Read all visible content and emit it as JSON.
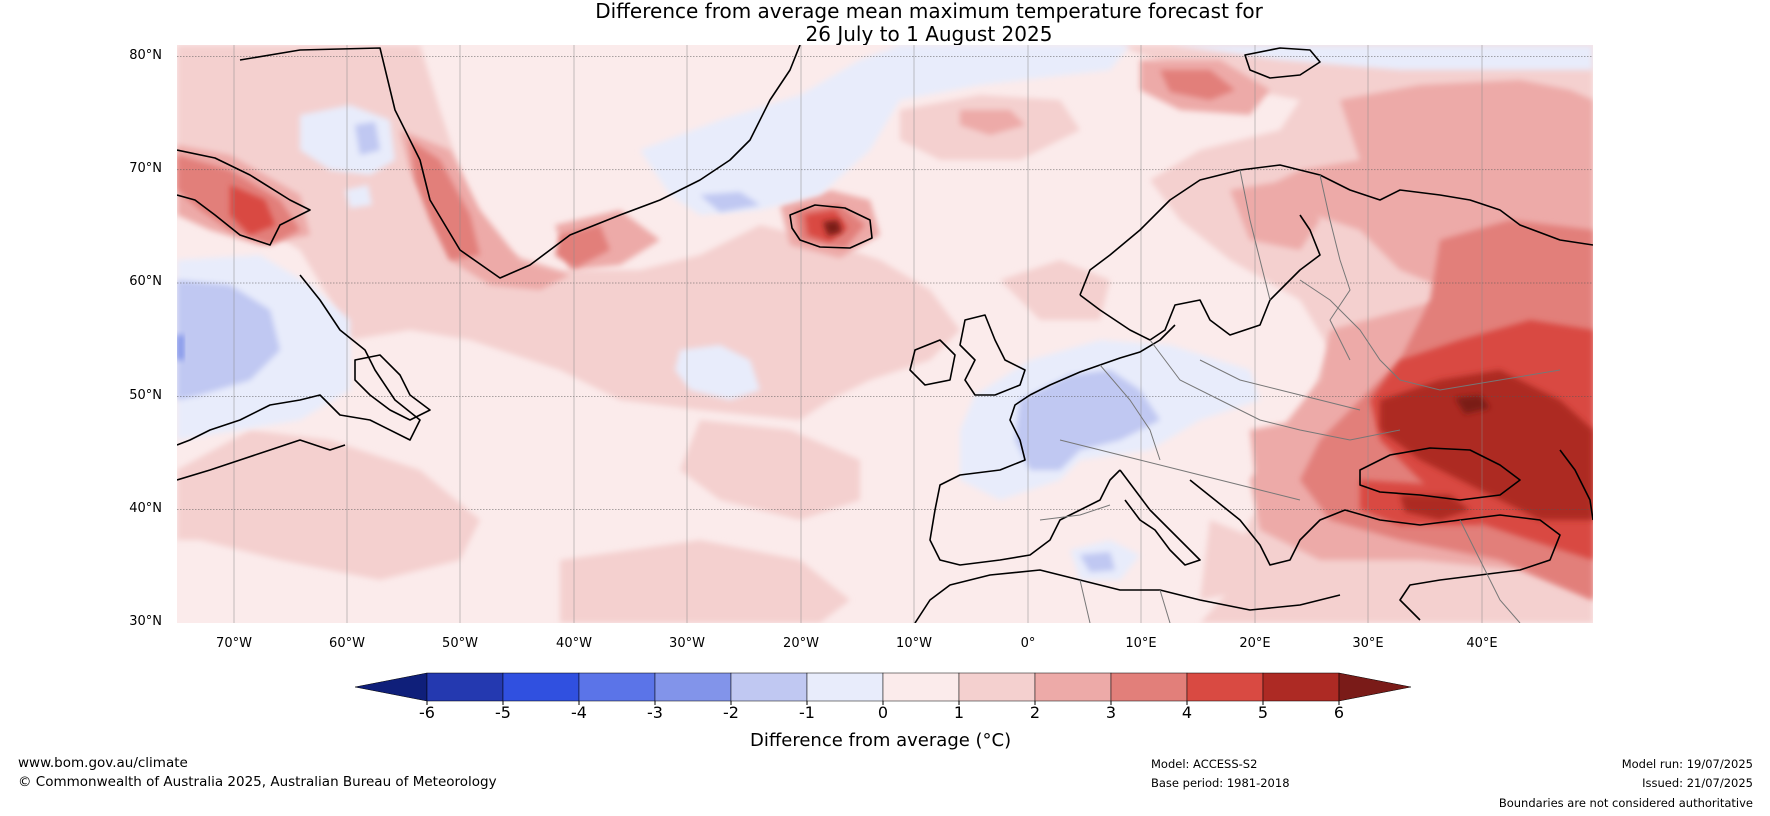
{
  "title": {
    "line1": "Difference from average mean maximum temperature forecast for",
    "line2": "26 July to 1 August 2025"
  },
  "map": {
    "latitude_labels": [
      "80°N",
      "70°N",
      "60°N",
      "50°N",
      "40°N",
      "30°N"
    ],
    "longitude_labels": [
      "70°W",
      "60°W",
      "50°W",
      "40°W",
      "30°W",
      "20°W",
      "10°W",
      "0°",
      "10°E",
      "20°E",
      "30°E",
      "40°E"
    ]
  },
  "colorbar": {
    "ticks": [
      "-6",
      "-5",
      "-4",
      "-3",
      "-2",
      "-1",
      "0",
      "1",
      "2",
      "3",
      "4",
      "5",
      "6"
    ],
    "colors": [
      "#0f1f7a",
      "#2439b0",
      "#3050e0",
      "#5b74e8",
      "#8294ea",
      "#c0c8f2",
      "#e8ecfb",
      "#fbebeb",
      "#f4d0cf",
      "#edaaa8",
      "#e27f7a",
      "#d94a42",
      "#ad2a24",
      "#7a1b18"
    ],
    "label": "Difference from average (°C)"
  },
  "footer": {
    "website": "www.bom.gov.au/climate",
    "copyright": "© Commonwealth of Australia 2025, Australian Bureau of Meteorology",
    "model": "Model: ACCESS-S2",
    "base_period": "Base period: 1981-2018",
    "model_run": "Model run: 19/07/2025",
    "issued": "Issued: 21/07/2025",
    "disclaimer": "Boundaries are not considered authoritative"
  }
}
